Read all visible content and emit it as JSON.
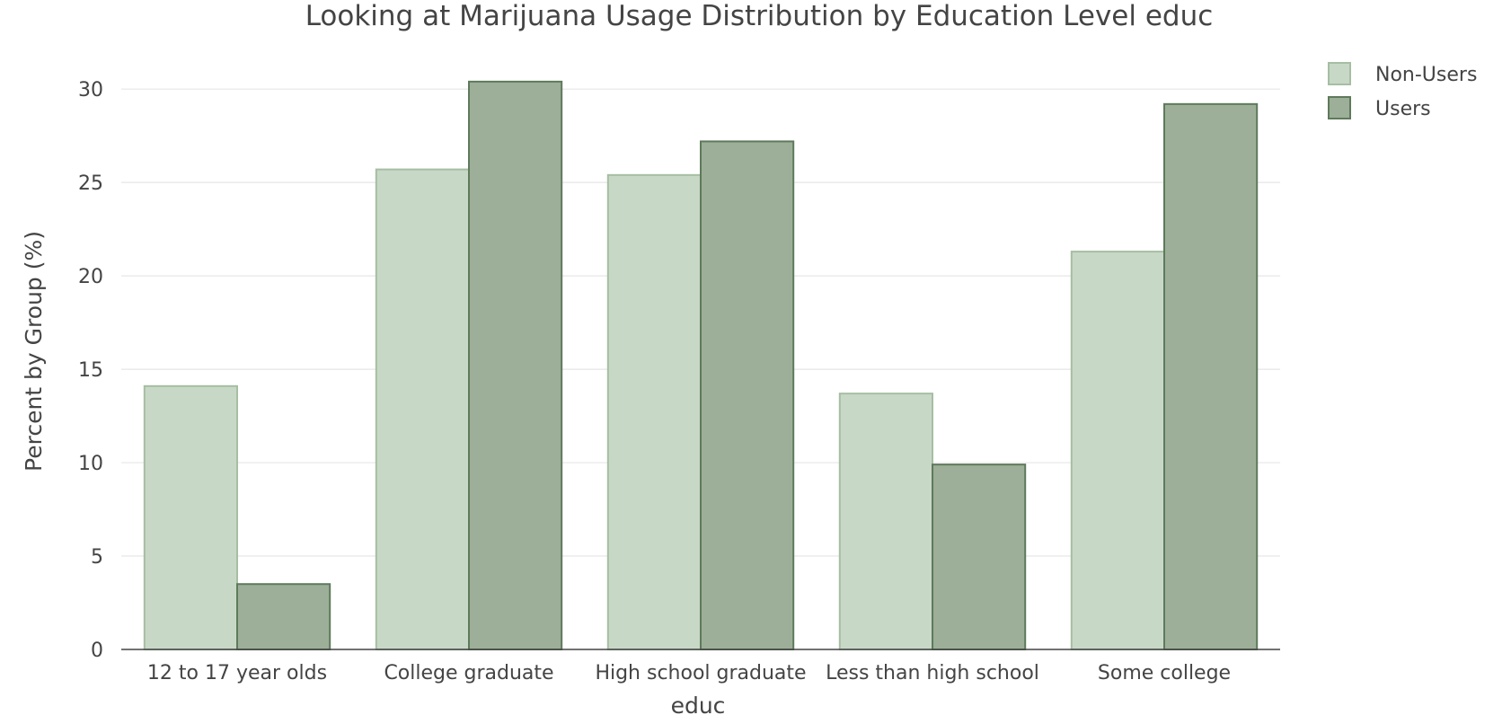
{
  "chart_data": {
    "type": "bar",
    "title": "Looking at Marijuana Usage Distribution by Education Level educ",
    "xlabel": "educ",
    "ylabel": "Percent by Group (%)",
    "categories": [
      "12 to 17 year olds",
      "College graduate",
      "High school graduate",
      "Less than high school",
      "Some college"
    ],
    "series": [
      {
        "name": "Non-Users",
        "values": [
          14.1,
          25.7,
          25.4,
          13.7,
          21.3
        ]
      },
      {
        "name": "Users",
        "values": [
          3.5,
          30.4,
          27.2,
          9.9,
          29.2
        ]
      }
    ],
    "ylim": [
      0,
      31.5
    ],
    "yticks": [
      0,
      5,
      10,
      15,
      20,
      25,
      30
    ],
    "grid": true,
    "legend_position": "top-right",
    "colors": {
      "Non-Users": {
        "fill": "#c8d8c6",
        "stroke": "#a6bea3"
      },
      "Users": {
        "fill": "#9daf98",
        "stroke": "#5e7a5b"
      }
    }
  }
}
